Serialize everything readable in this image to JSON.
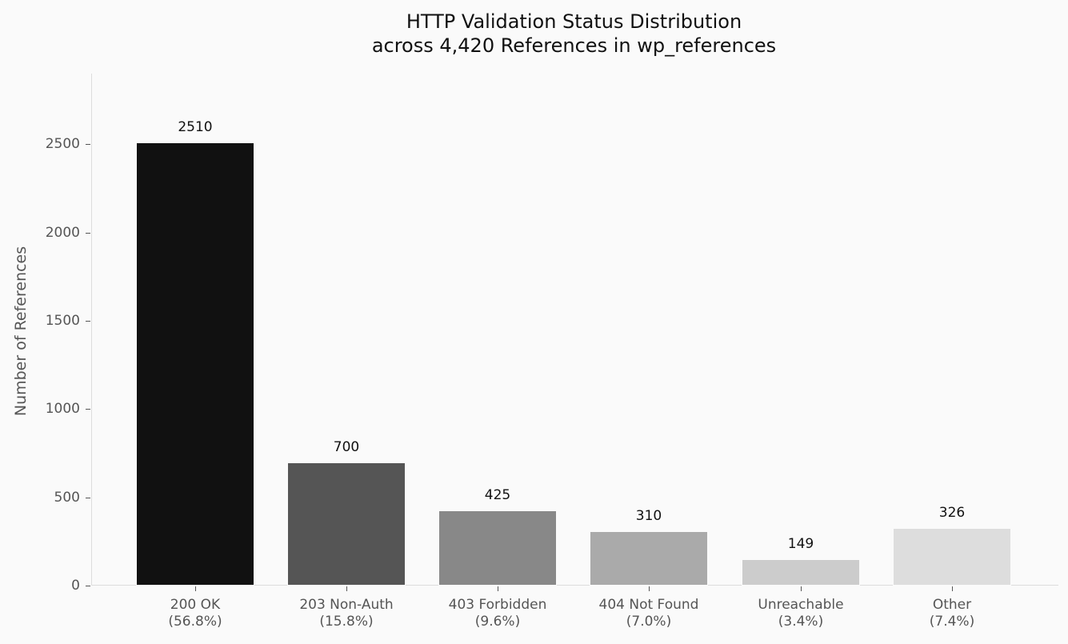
{
  "chart_data": {
    "type": "bar",
    "title": "HTTP Validation Status Distribution",
    "subtitle": "across 4,420 References in wp_references",
    "xlabel": "",
    "ylabel": "Number of References",
    "categories": [
      "200 OK",
      "203 Non-Auth",
      "403 Forbidden",
      "404 Not Found",
      "Unreachable",
      "Other"
    ],
    "category_percentages": [
      "(56.8%)",
      "(15.8%)",
      "(9.6%)",
      "(7.0%)",
      "(3.4%)",
      "(7.4%)"
    ],
    "values": [
      2510,
      700,
      425,
      310,
      149,
      326
    ],
    "bar_colors": [
      "#111111",
      "#555555",
      "#888888",
      "#aaaaaa",
      "#cccccc",
      "#dddddd"
    ],
    "ylim": [
      0,
      2900
    ],
    "yticks": [
      0,
      500,
      1000,
      1500,
      2000,
      2500
    ],
    "grid": false,
    "legend": null,
    "data_labels": true
  },
  "title_lines": [
    "HTTP Validation Status Distribution",
    "across 4,420 References in wp_references"
  ],
  "ylabel": "Number of References",
  "yticks": [
    "0",
    "500",
    "1000",
    "1500",
    "2000",
    "2500"
  ],
  "bars": [
    {
      "label": "200 OK",
      "pct": "(56.8%)",
      "value": "2510"
    },
    {
      "label": "203 Non-Auth",
      "pct": "(15.8%)",
      "value": "700"
    },
    {
      "label": "403 Forbidden",
      "pct": "(9.6%)",
      "value": "425"
    },
    {
      "label": "404 Not Found",
      "pct": "(7.0%)",
      "value": "310"
    },
    {
      "label": "Unreachable",
      "pct": "(3.4%)",
      "value": "149"
    },
    {
      "label": "Other",
      "pct": "(7.4%)",
      "value": "326"
    }
  ]
}
